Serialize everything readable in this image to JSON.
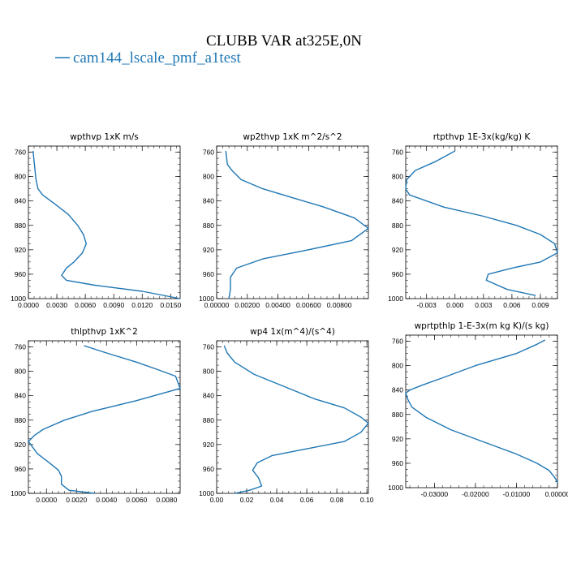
{
  "figure": {
    "title": "CLUBB VAR at325E,0N",
    "legend_label": "cam144_lscale_pmf_a1test",
    "legend_color": "#1f77b4",
    "line_color": "#1f77b4"
  },
  "chart_data": [
    {
      "type": "line",
      "title": "wpthvp  1xK m/s",
      "xlim": [
        0,
        0.016
      ],
      "ylim": [
        1000,
        750
      ],
      "xticks": [
        0,
        0.003,
        0.006,
        0.009,
        0.012,
        0.015
      ],
      "xtick_labels": [
        "0.0000",
        "0.0030",
        "0.0060",
        "0.0090",
        "0.0120",
        "0.0150"
      ],
      "yticks": [
        760,
        800,
        840,
        880,
        920,
        960,
        1000
      ],
      "ytick_labels": [
        "760",
        "800",
        "840",
        "880",
        "920",
        "960",
        "1000"
      ],
      "series": [
        {
          "x": [
            0.0005,
            0.0006,
            0.0007,
            0.0008,
            0.001,
            0.0015,
            0.0028,
            0.0042,
            0.0052,
            0.0058,
            0.0061,
            0.0057,
            0.0048,
            0.004,
            0.0035,
            0.004,
            0.007,
            0.012,
            0.016
          ],
          "y": [
            758,
            775,
            790,
            805,
            820,
            830,
            845,
            862,
            880,
            895,
            910,
            925,
            940,
            950,
            962,
            970,
            978,
            988,
            1000
          ]
        }
      ]
    },
    {
      "type": "line",
      "title": "wp2thvp  1xK m^2/s^2",
      "xlim": [
        0,
        0.0099
      ],
      "ylim": [
        1000,
        750
      ],
      "xticks": [
        0,
        0.002,
        0.004,
        0.006,
        0.008
      ],
      "xtick_labels": [
        "0.00000",
        "0.00200",
        "0.00400",
        "0.00600",
        "0.00800"
      ],
      "yticks": [
        760,
        800,
        840,
        880,
        920,
        960,
        1000
      ],
      "ytick_labels": [
        "760",
        "800",
        "840",
        "880",
        "920",
        "960",
        "1000"
      ],
      "series": [
        {
          "x": [
            0.0006,
            0.0007,
            0.001,
            0.0016,
            0.003,
            0.005,
            0.007,
            0.009,
            0.0099,
            0.0088,
            0.006,
            0.003,
            0.0013,
            0.0009,
            0.0009,
            0.0008
          ],
          "y": [
            758,
            780,
            790,
            805,
            820,
            835,
            850,
            868,
            885,
            905,
            920,
            935,
            950,
            965,
            985,
            1000
          ]
        }
      ]
    },
    {
      "type": "line",
      "title": "rtpthvp  1E-3x(kg/kg) K",
      "xlim": [
        -0.0052,
        0.0108
      ],
      "ylim": [
        1000,
        750
      ],
      "xticks": [
        -0.003,
        0,
        0.003,
        0.006,
        0.009
      ],
      "xtick_labels": [
        "-0.003",
        "0.000",
        "0.003",
        "0.006",
        "0.009"
      ],
      "yticks": [
        760,
        800,
        840,
        880,
        920,
        960,
        1000
      ],
      "ytick_labels": [
        "760",
        "800",
        "840",
        "880",
        "920",
        "960",
        "1000"
      ],
      "series": [
        {
          "x": [
            0.0,
            -0.002,
            -0.0042,
            -0.0051,
            -0.0052,
            -0.0048,
            -0.0012,
            0.003,
            0.0065,
            0.009,
            0.0105,
            0.0108,
            0.009,
            0.006,
            0.0035,
            0.0033,
            0.0055,
            0.0085
          ],
          "y": [
            758,
            775,
            790,
            805,
            820,
            830,
            850,
            865,
            880,
            895,
            910,
            925,
            940,
            950,
            960,
            970,
            985,
            995
          ]
        }
      ]
    },
    {
      "type": "line",
      "title": "thlpthvp  1xK^2",
      "xlim": [
        -0.0012,
        0.0089
      ],
      "ylim": [
        1000,
        750
      ],
      "xticks": [
        0,
        0.002,
        0.004,
        0.006,
        0.008
      ],
      "xtick_labels": [
        "0.0000",
        "0.0020",
        "0.0040",
        "0.0060",
        "0.0080"
      ],
      "yticks": [
        760,
        800,
        840,
        880,
        920,
        960,
        1000
      ],
      "ytick_labels": [
        "760",
        "800",
        "840",
        "880",
        "920",
        "960",
        "1000"
      ],
      "series": [
        {
          "x": [
            0.0025,
            0.004,
            0.006,
            0.0075,
            0.0086,
            0.0089,
            0.006,
            0.003,
            0.0012,
            -0.0002,
            -0.0008,
            -0.0012,
            -0.0006,
            0.0002,
            0.0008,
            0.001,
            0.001,
            0.0015,
            0.0032
          ],
          "y": [
            758,
            770,
            785,
            798,
            808,
            828,
            848,
            866,
            880,
            895,
            905,
            915,
            935,
            950,
            962,
            972,
            985,
            995,
            1000
          ]
        }
      ]
    },
    {
      "type": "line",
      "title": "wp4  1x(m^4)/(s^4)",
      "xlim": [
        0,
        0.101
      ],
      "ylim": [
        1000,
        750
      ],
      "xticks": [
        0,
        0.02,
        0.04,
        0.06,
        0.08,
        0.1
      ],
      "xtick_labels": [
        "0.00",
        "0.02",
        "0.04",
        "0.06",
        "0.08",
        "0.10"
      ],
      "yticks": [
        760,
        800,
        840,
        880,
        920,
        960,
        1000
      ],
      "ytick_labels": [
        "760",
        "800",
        "840",
        "880",
        "920",
        "960",
        "1000"
      ],
      "series": [
        {
          "x": [
            0.005,
            0.007,
            0.012,
            0.025,
            0.045,
            0.065,
            0.085,
            0.096,
            0.101,
            0.096,
            0.085,
            0.06,
            0.037,
            0.027,
            0.024,
            0.028,
            0.03,
            0.022,
            0.012
          ],
          "y": [
            758,
            770,
            785,
            805,
            825,
            845,
            860,
            875,
            885,
            900,
            915,
            927,
            938,
            950,
            962,
            975,
            988,
            995,
            1000
          ]
        }
      ]
    },
    {
      "type": "line",
      "title": "wprtpthlp  1-E-3x(m kg K)/(s kg)",
      "xlim": [
        -0.037,
        0.0
      ],
      "ylim": [
        1000,
        750
      ],
      "xticks": [
        -0.03,
        -0.02,
        -0.01,
        0.0
      ],
      "xtick_labels": [
        "-0.03000",
        "-0.02000",
        "-0.01000",
        "0.00000"
      ],
      "yticks": [
        760,
        800,
        840,
        880,
        920,
        960,
        1000
      ],
      "ytick_labels": [
        "760",
        "800",
        "840",
        "880",
        "920",
        "960",
        "1000"
      ],
      "series": [
        {
          "x": [
            -0.003,
            -0.005,
            -0.01,
            -0.02,
            -0.028,
            -0.033,
            -0.036,
            -0.037,
            -0.0365,
            -0.0355,
            -0.032,
            -0.026,
            -0.018,
            -0.01,
            -0.005,
            -0.002,
            -0.0005,
            0.0
          ],
          "y": [
            758,
            765,
            780,
            800,
            820,
            832,
            840,
            845,
            855,
            868,
            885,
            905,
            925,
            945,
            960,
            972,
            985,
            992
          ]
        }
      ]
    }
  ]
}
